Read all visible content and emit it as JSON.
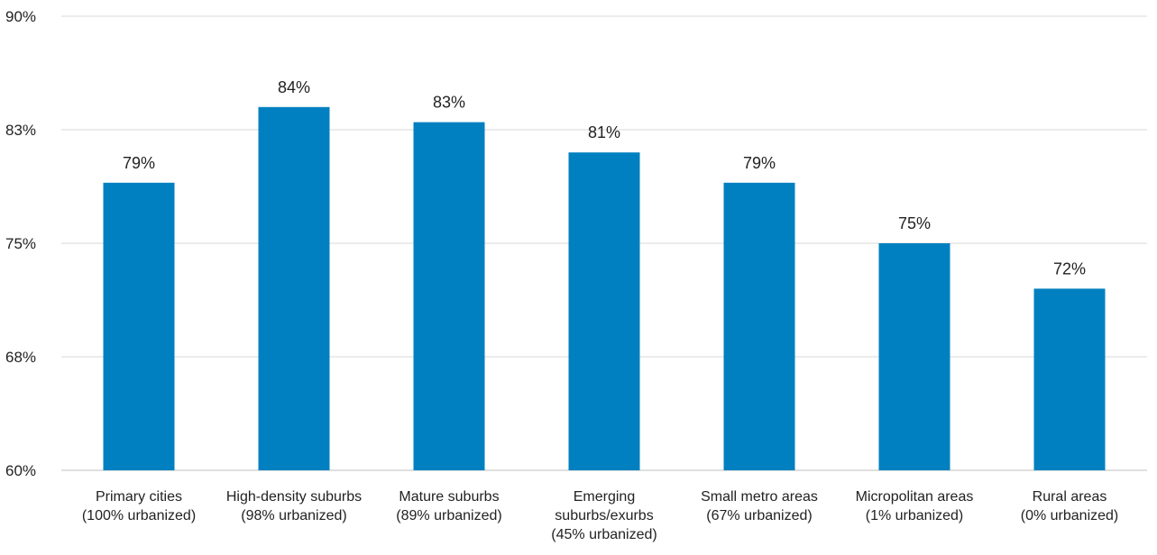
{
  "chart_data": {
    "type": "bar",
    "categories": [
      [
        "Primary cities",
        "(100% urbanized)"
      ],
      [
        "High-density suburbs",
        "(98% urbanized)"
      ],
      [
        "Mature suburbs",
        "(89% urbanized)"
      ],
      [
        "Emerging",
        "suburbs/exurbs",
        "(45% urbanized)"
      ],
      [
        "Small metro areas",
        "(67% urbanized)"
      ],
      [
        "Micropolitan areas",
        "(1% urbanized)"
      ],
      [
        "Rural areas",
        "(0% urbanized)"
      ]
    ],
    "values": [
      79,
      84,
      83,
      81,
      79,
      75,
      72
    ],
    "data_labels": [
      "79%",
      "84%",
      "83%",
      "81%",
      "79%",
      "75%",
      "72%"
    ],
    "y_ticks": [
      {
        "value": 60,
        "label": "60%"
      },
      {
        "value": 67.5,
        "label": "68%"
      },
      {
        "value": 75,
        "label": "75%"
      },
      {
        "value": 82.5,
        "label": "83%"
      },
      {
        "value": 90,
        "label": "90%"
      }
    ],
    "ylim": [
      60,
      90
    ],
    "grid": true,
    "colors": {
      "bar": "#0080C0",
      "grid": "#d9d9d9",
      "axis": "#bfbfbf",
      "text": "#222222"
    }
  }
}
